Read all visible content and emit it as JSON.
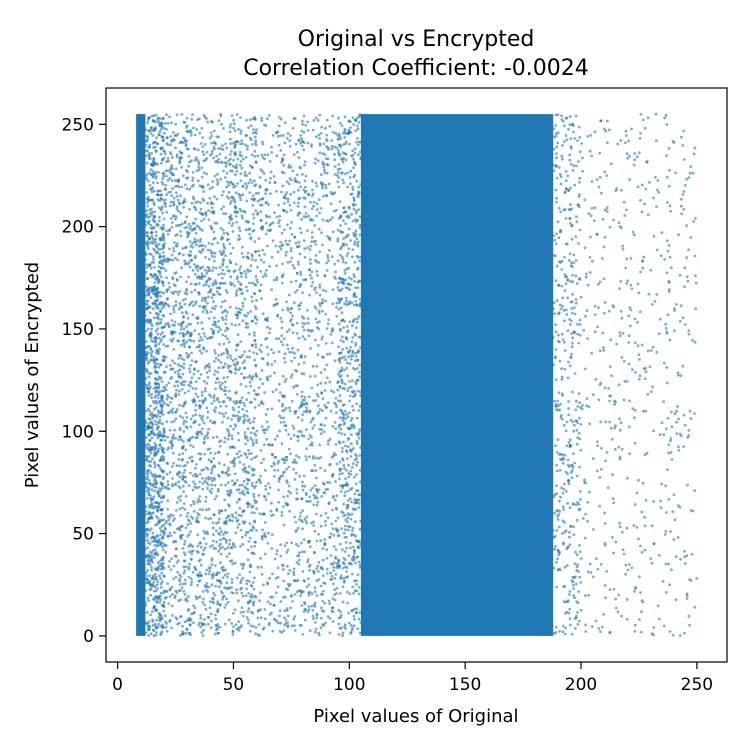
{
  "colors": {
    "points": "#1f77b4",
    "axes": "#000000",
    "background": "#ffffff"
  },
  "chart_data": {
    "type": "scatter",
    "title": "Original vs Encrypted",
    "subtitle": "Correlation Coefficient: -0.0024",
    "xlabel": "Pixel values of Original",
    "ylabel": "Pixel values of Encrypted",
    "xlim": [
      -5,
      263
    ],
    "ylim": [
      -12.75,
      267.75
    ],
    "xticks": [
      0,
      50,
      100,
      150,
      200,
      250
    ],
    "yticks": [
      0,
      50,
      100,
      150,
      200,
      250
    ],
    "x_tick_labels": [
      "0",
      "50",
      "100",
      "150",
      "200",
      "250"
    ],
    "y_tick_labels": [
      "0",
      "50",
      "100",
      "150",
      "200",
      "250"
    ],
    "grid": false,
    "legend": "none",
    "marker_alpha": 0.6,
    "y_value_range": [
      0,
      255
    ],
    "point_density_by_original_value": [
      {
        "x_range": [
          8,
          12
        ],
        "density": "solid"
      },
      {
        "x_range": [
          12,
          20
        ],
        "density": "very high"
      },
      {
        "x_range": [
          20,
          60
        ],
        "density": "high"
      },
      {
        "x_range": [
          60,
          95
        ],
        "density": "medium"
      },
      {
        "x_range": [
          95,
          105
        ],
        "density": "high"
      },
      {
        "x_range": [
          105,
          188
        ],
        "density": "solid"
      },
      {
        "x_range": [
          188,
          200
        ],
        "density": "medium"
      },
      {
        "x_range": [
          200,
          250
        ],
        "density": "sparse"
      }
    ]
  }
}
